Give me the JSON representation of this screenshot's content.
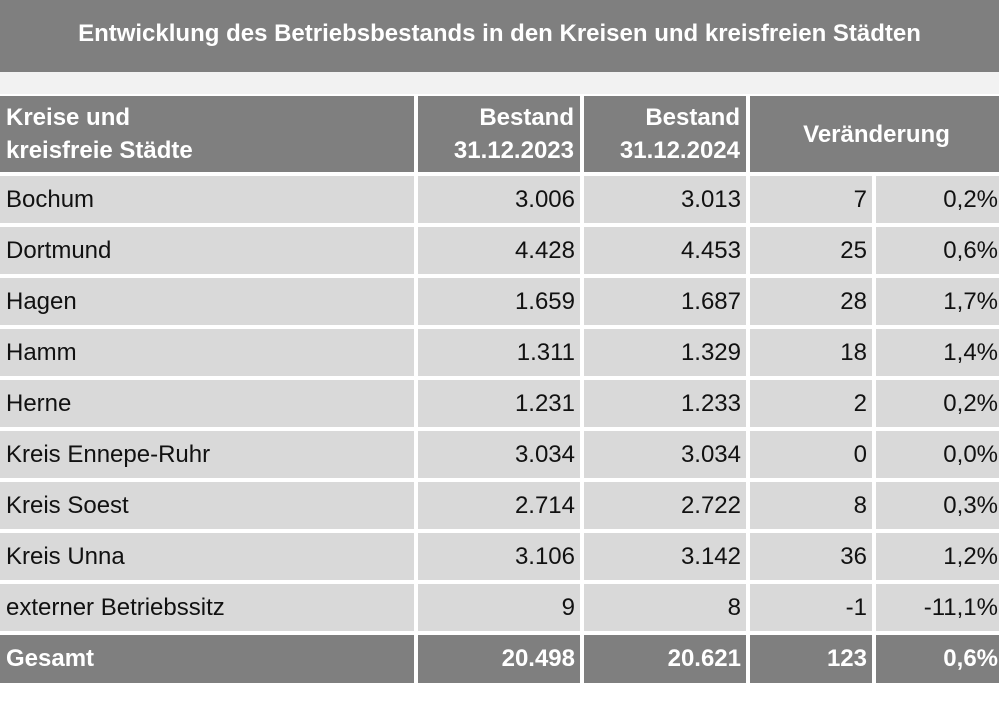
{
  "title": "Entwicklung des Betriebsbestands in den Kreisen und kreisfreien Städten",
  "header": {
    "name_line1": "Kreise und",
    "name_line2": "kreisfreie Städte",
    "col1_line1": "Bestand",
    "col1_line2": "31.12.2023",
    "col2_line1": "Bestand",
    "col2_line2": "31.12.2024",
    "change": "Veränderung"
  },
  "rows": [
    {
      "name": "Bochum",
      "b2023": "3.006",
      "b2024": "3.013",
      "diff": "7",
      "pct": "0,2%"
    },
    {
      "name": "Dortmund",
      "b2023": "4.428",
      "b2024": "4.453",
      "diff": "25",
      "pct": "0,6%"
    },
    {
      "name": "Hagen",
      "b2023": "1.659",
      "b2024": "1.687",
      "diff": "28",
      "pct": "1,7%"
    },
    {
      "name": "Hamm",
      "b2023": "1.311",
      "b2024": "1.329",
      "diff": "18",
      "pct": "1,4%"
    },
    {
      "name": "Herne",
      "b2023": "1.231",
      "b2024": "1.233",
      "diff": "2",
      "pct": "0,2%"
    },
    {
      "name": "Kreis Ennepe-Ruhr",
      "b2023": "3.034",
      "b2024": "3.034",
      "diff": "0",
      "pct": "0,0%"
    },
    {
      "name": "Kreis Soest",
      "b2023": "2.714",
      "b2024": "2.722",
      "diff": "8",
      "pct": "0,3%"
    },
    {
      "name": "Kreis Unna",
      "b2023": "3.106",
      "b2024": "3.142",
      "diff": "36",
      "pct": "1,2%"
    },
    {
      "name": "externer Betriebssitz",
      "b2023": "9",
      "b2024": "8",
      "diff": "-1",
      "pct": "-11,1%"
    }
  ],
  "total": {
    "name": "Gesamt",
    "b2023": "20.498",
    "b2024": "20.621",
    "diff": "123",
    "pct": "0,6%"
  },
  "colors": {
    "header_bg": "#7f7f7f",
    "row_bg": "#d9d9d9",
    "header_text": "#ffffff"
  }
}
